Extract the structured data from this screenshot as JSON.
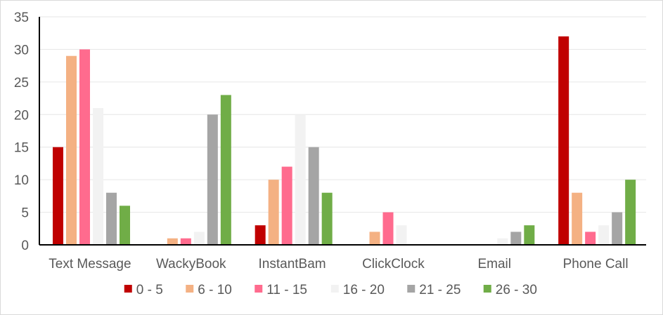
{
  "chart_data": {
    "type": "bar",
    "title": "",
    "xlabel": "",
    "ylabel": "",
    "ylim": [
      0,
      35
    ],
    "yticks": [
      0,
      5,
      10,
      15,
      20,
      25,
      30,
      35
    ],
    "grid": true,
    "legend_position": "bottom",
    "categories": [
      "Text Message",
      "WackyBook",
      "InstantBam",
      "ClickClock",
      "Email",
      "Phone Call"
    ],
    "series": [
      {
        "name": "0 - 5",
        "color": "#c00000",
        "values": [
          15,
          0,
          3,
          0,
          0,
          32
        ]
      },
      {
        "name": "6 - 10",
        "color": "#f4b183",
        "values": [
          29,
          1,
          10,
          2,
          0,
          8
        ]
      },
      {
        "name": "11 - 15",
        "color": "#ff6b8e",
        "values": [
          30,
          1,
          12,
          5,
          0,
          2
        ]
      },
      {
        "name": "16 - 20",
        "color": "#f2f2f2",
        "values": [
          21,
          2,
          20,
          3,
          1,
          3
        ]
      },
      {
        "name": "21 - 25",
        "color": "#a5a5a5",
        "values": [
          8,
          20,
          15,
          0,
          2,
          5
        ]
      },
      {
        "name": "26 - 30",
        "color": "#70ad47",
        "values": [
          6,
          23,
          8,
          0,
          3,
          10
        ]
      }
    ]
  }
}
